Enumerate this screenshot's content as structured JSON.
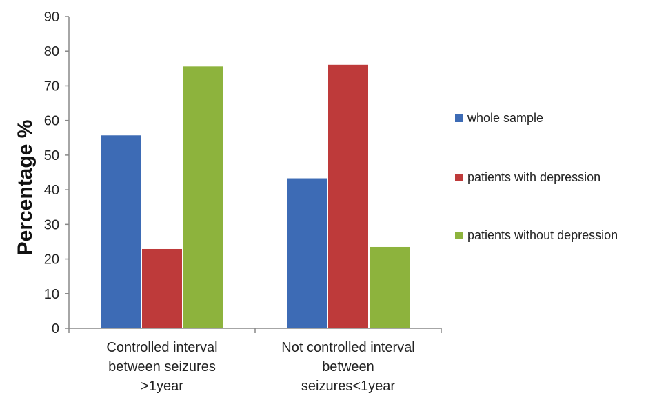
{
  "chart_data": {
    "type": "bar",
    "title": "",
    "xlabel": "",
    "ylabel": "Percentage %",
    "ylim": [
      0,
      90
    ],
    "yticks": [
      0,
      10,
      20,
      30,
      40,
      50,
      60,
      70,
      80,
      90
    ],
    "grid": false,
    "legend_position": "right",
    "categories": [
      [
        "Controlled interval",
        "between seizures",
        ">1year"
      ],
      [
        "Not controlled interval",
        "between",
        "seizures<1year"
      ]
    ],
    "series": [
      {
        "name": "whole sample",
        "color": "#3d6bb5",
        "values": [
          55.7,
          43.3
        ]
      },
      {
        "name": "patients with depression",
        "color": "#be3a3a",
        "values": [
          22.9,
          76.1
        ]
      },
      {
        "name": "patients without depression",
        "color": "#8db33d",
        "values": [
          75.6,
          23.5
        ]
      }
    ]
  }
}
